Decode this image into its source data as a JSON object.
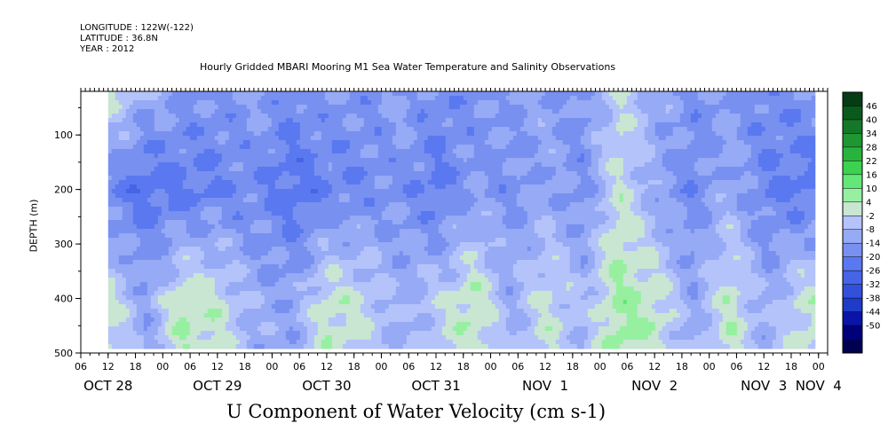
{
  "header": {
    "longitude": "LONGITUDE : 122W(-122)",
    "latitude": "LATITUDE : 36.8N",
    "year": "YEAR : 2012"
  },
  "chart_data": {
    "type": "heatmap",
    "title": "Hourly Gridded MBARI Mooring M1 Sea Water Temperature and Salinity Observations",
    "xlabel": "U Component of Water Velocity (cm s-1)",
    "ylabel": "DEPTH (m)",
    "x_range_hours": [
      6,
      170
    ],
    "data_x_range_hours": [
      12,
      167
    ],
    "ylim": [
      500,
      20
    ],
    "data_depth_range": [
      20,
      487
    ],
    "y_ticks": [
      100,
      200,
      300,
      400,
      500
    ],
    "x_hour_tick_labels": [
      "06",
      "12",
      "18",
      "00",
      "06",
      "12",
      "18",
      "00",
      "06",
      "12",
      "18",
      "00",
      "06",
      "12",
      "18",
      "00",
      "06",
      "12",
      "18",
      "00",
      "06",
      "12",
      "18",
      "00",
      "06",
      "12",
      "18",
      "00",
      "06",
      "12",
      "18",
      "00"
    ],
    "x_hour_tick_values": [
      6,
      12,
      18,
      24,
      30,
      36,
      42,
      48,
      54,
      60,
      66,
      72,
      78,
      84,
      90,
      96,
      102,
      108,
      114,
      120,
      126,
      132,
      138,
      144,
      150,
      156,
      162,
      168,
      174,
      180,
      186,
      192
    ],
    "x_day_labels": [
      {
        "label": "OCT 28",
        "hour": 12
      },
      {
        "label": "OCT 29",
        "hour": 36
      },
      {
        "label": "OCT 30",
        "hour": 60
      },
      {
        "label": "OCT 31",
        "hour": 84
      },
      {
        "label": "NOV  1",
        "hour": 108
      },
      {
        "label": "NOV  2",
        "hour": 132
      },
      {
        "label": "NOV  3",
        "hour": 156
      },
      {
        "label": "NOV  4",
        "hour": 168
      }
    ],
    "colorbar": {
      "levels": [
        -50,
        -44,
        -38,
        -32,
        -26,
        -20,
        -14,
        -8,
        -2,
        4,
        10,
        16,
        22,
        28,
        34,
        40,
        46
      ],
      "labels": [
        "46",
        "40",
        "34",
        "28",
        "22",
        "16",
        "10",
        "4",
        "-2",
        "-8",
        "-14",
        "-20",
        "-26",
        "-32",
        "-38",
        "-44",
        "-50"
      ],
      "colors": [
        "#000050",
        "#00007a",
        "#0a14a8",
        "#1e3cc8",
        "#3250dc",
        "#4664e6",
        "#5a78f0",
        "#7890f0",
        "#96aaf5",
        "#b4c3fa",
        "#c8e6d2",
        "#96f0a0",
        "#64e678",
        "#3cd250",
        "#28b43c",
        "#1e9632",
        "#147828",
        "#0a5a1e",
        "#053c14"
      ]
    },
    "field_description_x_hours": [
      12,
      20,
      28,
      36,
      44,
      52,
      60,
      68,
      76,
      84,
      92,
      100,
      108,
      116,
      124,
      132,
      140,
      148,
      156,
      164
    ],
    "field_description_values_near_surface": [
      6,
      -4,
      -8,
      -10,
      -6,
      -12,
      -8,
      -10,
      -6,
      -12,
      -10,
      -8,
      -6,
      -10,
      4,
      -4,
      -10,
      -8,
      -12,
      -10
    ],
    "field_description_values_mid_200m": [
      -14,
      -18,
      -16,
      -14,
      -12,
      -18,
      -14,
      -12,
      -10,
      -16,
      -8,
      -10,
      -6,
      -10,
      6,
      -6,
      -12,
      -4,
      -14,
      -16
    ],
    "field_description_values_deep_400m": [
      6,
      -6,
      10,
      6,
      -4,
      -6,
      8,
      4,
      -4,
      2,
      10,
      -4,
      6,
      -2,
      12,
      8,
      -6,
      8,
      -4,
      6
    ]
  }
}
